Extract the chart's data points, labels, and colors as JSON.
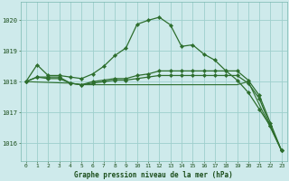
{
  "background_color": "#ceeaeb",
  "grid_color": "#9ecfcc",
  "line_color": "#2d6e2d",
  "marker_color": "#2d6e2d",
  "title": "Graphe pression niveau de la mer (hPa)",
  "title_color": "#1a4d1a",
  "xlim": [
    -0.5,
    23.5
  ],
  "ylim": [
    1015.4,
    1020.6
  ],
  "yticks": [
    1016,
    1017,
    1018,
    1019,
    1020
  ],
  "xticks": [
    0,
    1,
    2,
    3,
    4,
    5,
    6,
    7,
    8,
    9,
    10,
    11,
    12,
    13,
    14,
    15,
    16,
    17,
    18,
    19,
    20,
    21,
    22,
    23
  ],
  "series": [
    {
      "x": [
        0,
        1,
        2,
        3,
        4,
        5,
        6,
        7,
        8,
        9,
        10,
        11,
        12,
        13,
        14,
        15,
        16,
        17,
        18,
        19,
        20,
        21,
        22,
        23
      ],
      "y": [
        1018.0,
        1018.55,
        1018.2,
        1018.2,
        1018.15,
        1018.1,
        1018.25,
        1018.5,
        1018.85,
        1019.1,
        1019.87,
        1020.0,
        1020.1,
        1019.85,
        1019.15,
        1019.2,
        1018.9,
        1018.7,
        1018.35,
        1018.05,
        1017.65,
        1017.1,
        1016.55,
        1015.75
      ],
      "marker": true
    },
    {
      "x": [
        0,
        1,
        2,
        3,
        4,
        5,
        6,
        7,
        8,
        9,
        10,
        11,
        12,
        13,
        14,
        15,
        16,
        17,
        18,
        19,
        20,
        21,
        22,
        23
      ],
      "y": [
        1018.0,
        1018.15,
        1018.15,
        1018.15,
        1017.95,
        1017.9,
        1018.0,
        1018.05,
        1018.1,
        1018.1,
        1018.2,
        1018.25,
        1018.35,
        1018.35,
        1018.35,
        1018.35,
        1018.35,
        1018.35,
        1018.35,
        1018.35,
        1018.05,
        1017.55,
        1016.65,
        1015.75
      ],
      "marker": true
    },
    {
      "x": [
        0,
        1,
        2,
        3,
        4,
        5,
        6,
        7,
        8,
        9,
        10,
        11,
        12,
        13,
        14,
        15,
        16,
        17,
        18,
        19,
        20,
        21,
        22,
        23
      ],
      "y": [
        1018.0,
        1018.15,
        1018.1,
        1018.1,
        1017.95,
        1017.9,
        1017.95,
        1018.0,
        1018.05,
        1018.05,
        1018.1,
        1018.15,
        1018.2,
        1018.2,
        1018.2,
        1018.2,
        1018.2,
        1018.2,
        1018.2,
        1018.2,
        1017.95,
        1017.45,
        1016.55,
        1015.75
      ],
      "marker": true
    },
    {
      "x": [
        0,
        4,
        5,
        6,
        7,
        8,
        9,
        10,
        11,
        12,
        13,
        14,
        15,
        16,
        17,
        18,
        19,
        20,
        23
      ],
      "y": [
        1018.0,
        1017.95,
        1017.9,
        1017.9,
        1017.9,
        1017.9,
        1017.9,
        1017.9,
        1017.9,
        1017.9,
        1017.9,
        1017.9,
        1017.9,
        1017.9,
        1017.9,
        1017.9,
        1017.9,
        1018.0,
        1015.75
      ],
      "marker": false
    }
  ]
}
